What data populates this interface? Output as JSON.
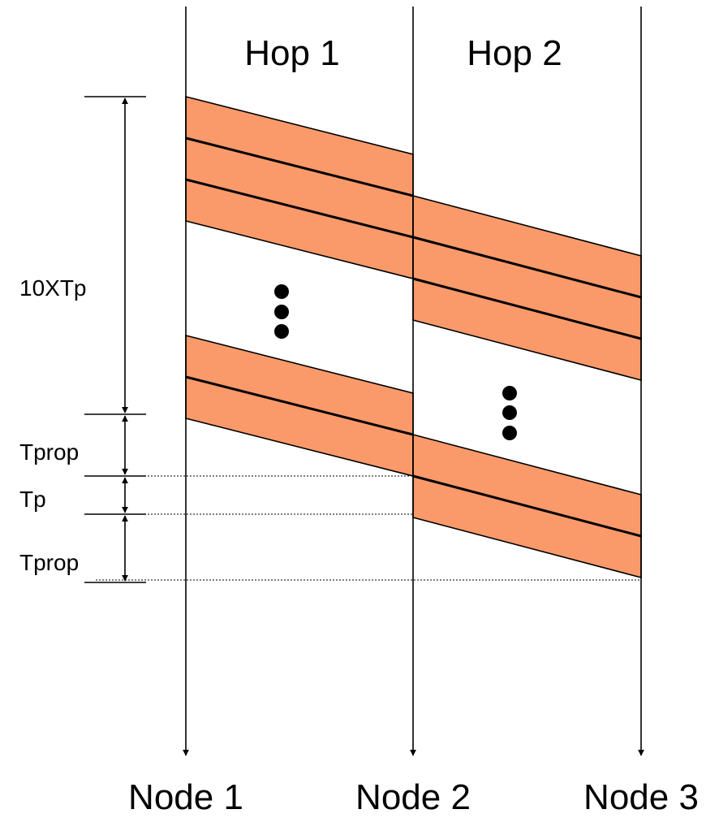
{
  "hops": [
    "Hop 1",
    "Hop 2"
  ],
  "nodes": [
    "Node 1",
    "Node 2",
    "Node 3"
  ],
  "intervals": [
    {
      "label": "10XTp"
    },
    {
      "label": "Tprop"
    },
    {
      "label": "Tp"
    },
    {
      "label": "Tprop"
    }
  ],
  "colors": {
    "packet_fill": "#FA9A6A",
    "line": "#000000",
    "background": "#ffffff"
  }
}
